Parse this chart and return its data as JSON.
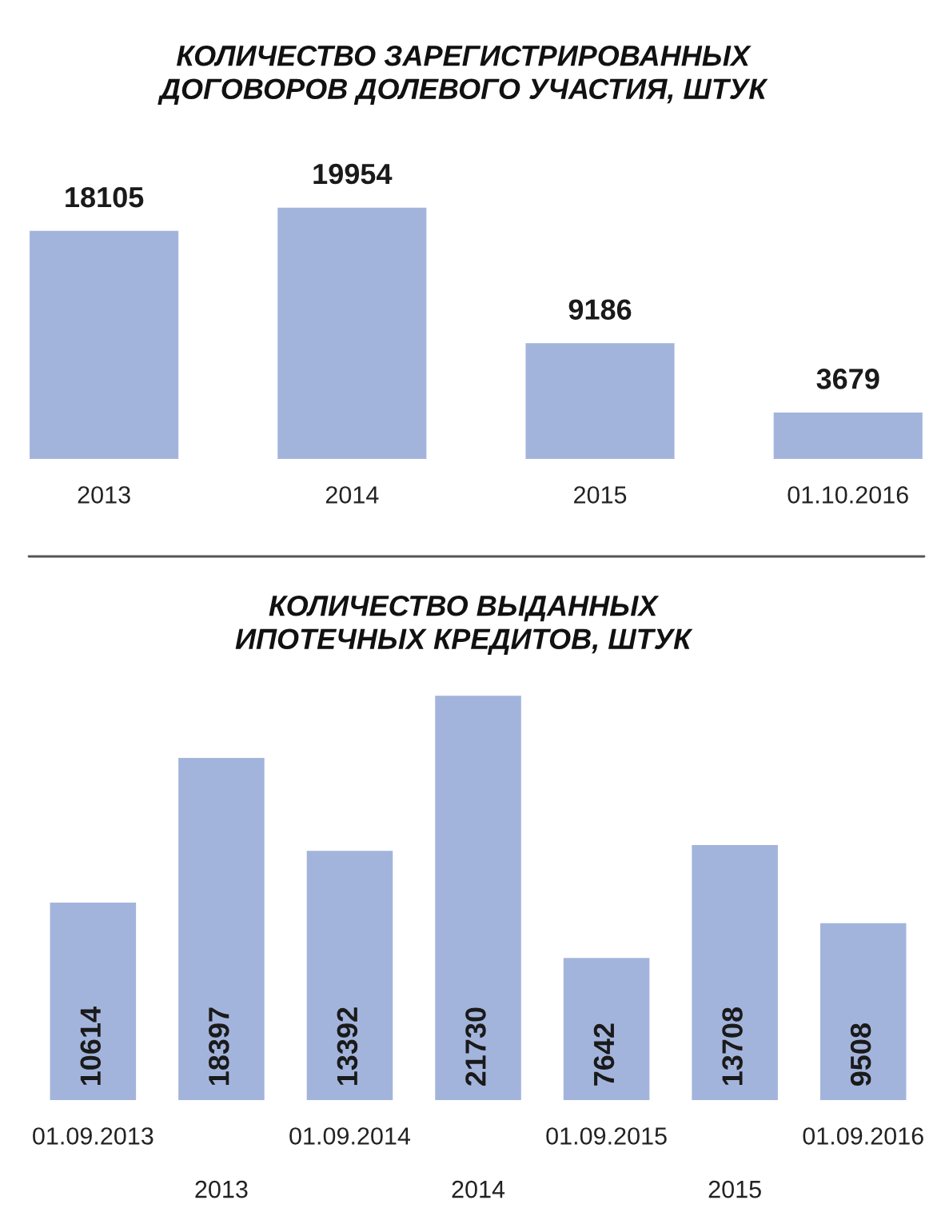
{
  "chart_data": [
    {
      "type": "bar",
      "title": "КОЛИЧЕСТВО ЗАРЕГИСТРИРОВАННЫХ\nДОГОВОРОВ ДОЛЕВОГО УЧАСТИЯ, ШТУК",
      "categories": [
        "2013",
        "2014",
        "2015",
        "01.10.2016"
      ],
      "values": [
        18105,
        19954,
        9186,
        3679
      ],
      "color": "#a3b4dc",
      "data_labels": true
    },
    {
      "type": "bar",
      "title": "КОЛИЧЕСТВО ВЫДАННЫХ\nИПОТЕЧНЫХ КРЕДИТОВ, ШТУК",
      "categories": [
        "01.09.2013",
        "2013",
        "01.09.2014",
        "2014",
        "01.09.2015",
        "2015",
        "01.09.2016"
      ],
      "values": [
        10614,
        18397,
        13392,
        21730,
        7642,
        13708,
        9508
      ],
      "color": "#a3b4dc",
      "data_labels": true
    }
  ]
}
